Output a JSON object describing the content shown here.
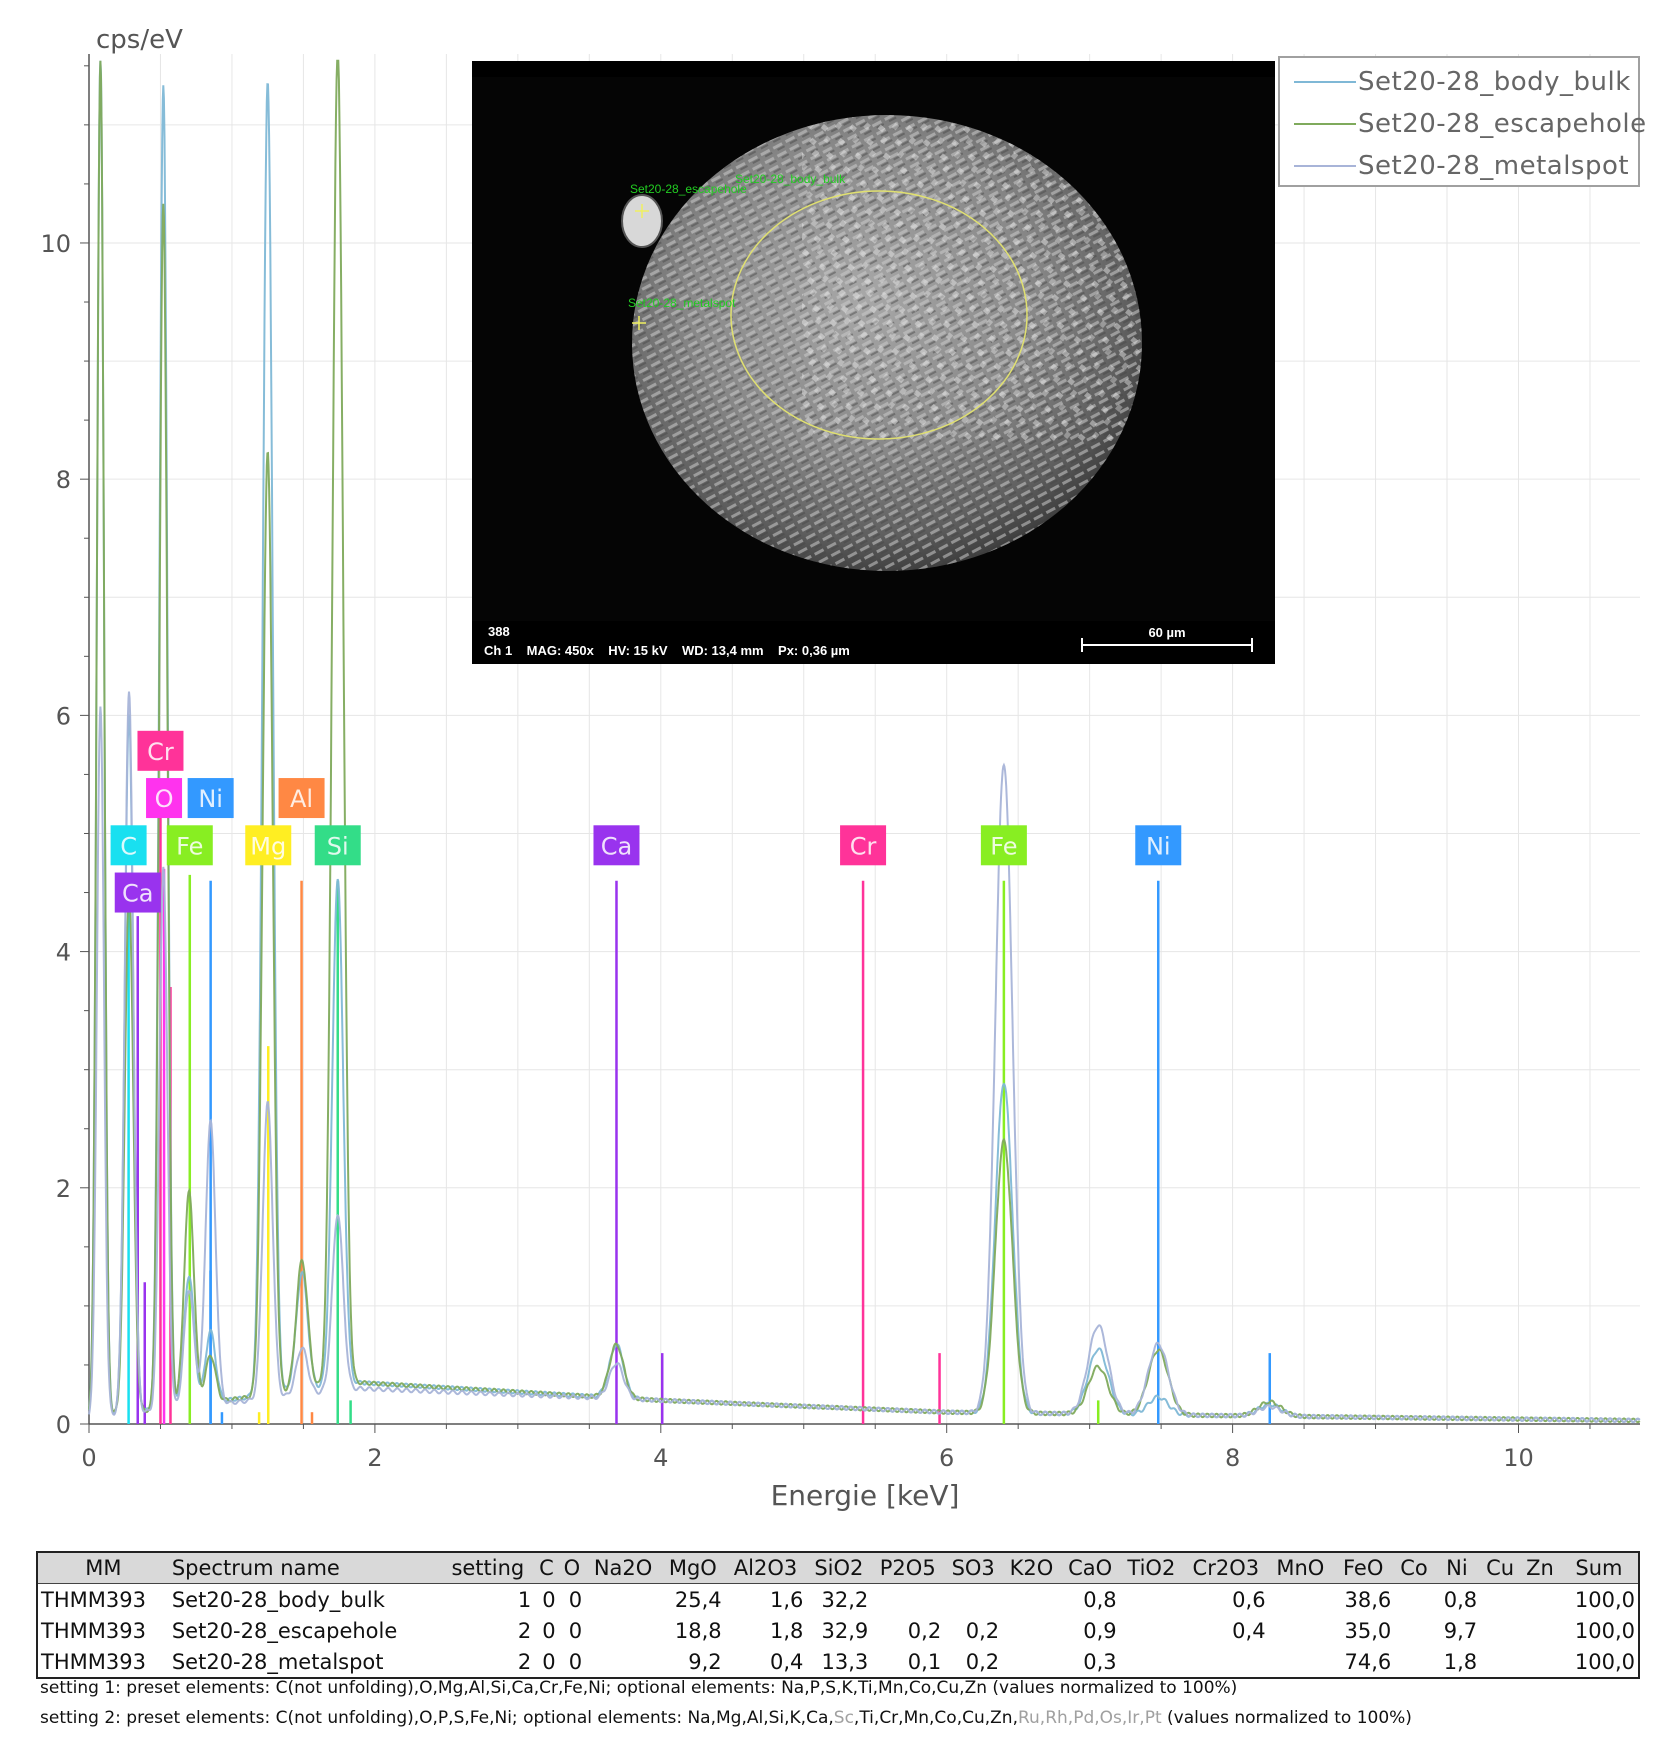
{
  "chart_data": {
    "type": "line",
    "y_unit_label": "cps/eV",
    "xlabel": "Energie [keV]",
    "xlim": [
      0,
      10.85
    ],
    "ylim": [
      0,
      11.6
    ],
    "x_ticks": [
      0,
      2,
      4,
      6,
      8,
      10
    ],
    "y_ticks": [
      0,
      2,
      4,
      6,
      8,
      10
    ],
    "grid": true,
    "legend_position": "top-right",
    "series": [
      {
        "name": "Set20-28_body_bulk",
        "color": "#7fb8d6",
        "peaks": [
          {
            "x": 0.08,
            "y": 11.5
          },
          {
            "x": 0.28,
            "y": 5.9
          },
          {
            "x": 0.52,
            "y": 11.2
          },
          {
            "x": 0.7,
            "y": 1.1
          },
          {
            "x": 0.85,
            "y": 0.6
          },
          {
            "x": 1.25,
            "y": 11.1
          },
          {
            "x": 1.49,
            "y": 1.0
          },
          {
            "x": 1.74,
            "y": 4.3
          },
          {
            "x": 3.69,
            "y": 0.45
          },
          {
            "x": 6.4,
            "y": 2.8
          },
          {
            "x": 7.06,
            "y": 0.55
          },
          {
            "x": 7.48,
            "y": 0.15
          },
          {
            "x": 8.26,
            "y": 0.1
          }
        ],
        "baseline": [
          [
            0.0,
            0.05
          ],
          [
            1.9,
            0.35
          ],
          [
            4.0,
            0.2
          ],
          [
            6.0,
            0.1
          ],
          [
            8.0,
            0.07
          ],
          [
            10.85,
            0.03
          ]
        ]
      },
      {
        "name": "Set20-28_escapehole",
        "color": "#7faa5c",
        "peaks": [
          {
            "x": 0.08,
            "y": 11.5
          },
          {
            "x": 0.28,
            "y": 4.4
          },
          {
            "x": 0.52,
            "y": 10.2
          },
          {
            "x": 0.7,
            "y": 1.8
          },
          {
            "x": 0.85,
            "y": 0.4
          },
          {
            "x": 1.25,
            "y": 8.0
          },
          {
            "x": 1.49,
            "y": 1.1
          },
          {
            "x": 1.74,
            "y": 11.3
          },
          {
            "x": 3.69,
            "y": 0.45
          },
          {
            "x": 6.4,
            "y": 2.3
          },
          {
            "x": 7.06,
            "y": 0.4
          },
          {
            "x": 7.48,
            "y": 0.55
          },
          {
            "x": 8.26,
            "y": 0.12
          }
        ],
        "baseline": [
          [
            0.0,
            0.05
          ],
          [
            1.9,
            0.35
          ],
          [
            4.0,
            0.2
          ],
          [
            6.0,
            0.1
          ],
          [
            8.0,
            0.07
          ],
          [
            10.85,
            0.03
          ]
        ]
      },
      {
        "name": "Set20-28_metalspot",
        "color": "#a8b4d8",
        "peaks": [
          {
            "x": 0.08,
            "y": 6.0
          },
          {
            "x": 0.28,
            "y": 6.1
          },
          {
            "x": 0.52,
            "y": 4.6
          },
          {
            "x": 0.7,
            "y": 1.0
          },
          {
            "x": 0.85,
            "y": 2.4
          },
          {
            "x": 1.25,
            "y": 2.5
          },
          {
            "x": 1.49,
            "y": 0.4
          },
          {
            "x": 1.74,
            "y": 1.5
          },
          {
            "x": 3.69,
            "y": 0.3
          },
          {
            "x": 6.4,
            "y": 5.5
          },
          {
            "x": 7.06,
            "y": 0.75
          },
          {
            "x": 7.48,
            "y": 0.6
          },
          {
            "x": 8.26,
            "y": 0.08
          }
        ],
        "baseline": [
          [
            0.0,
            0.05
          ],
          [
            1.9,
            0.3
          ],
          [
            4.0,
            0.2
          ],
          [
            6.0,
            0.1
          ],
          [
            8.0,
            0.07
          ],
          [
            10.85,
            0.03
          ]
        ]
      }
    ],
    "element_markers": [
      {
        "label": "C",
        "x": 0.277,
        "color": "#19e0f0",
        "label_y": 4.9,
        "line_top": 4.5
      },
      {
        "label": "Ca",
        "x": 0.341,
        "color": "#9933ee",
        "label_y": 4.5,
        "line_top": 4.3
      },
      {
        "label": "Cr",
        "x": 0.5,
        "color": "#ff3399",
        "label_y": 5.7,
        "line_top": 5.4
      },
      {
        "label": "O",
        "x": 0.525,
        "color": "#ff33ee",
        "label_y": 5.3,
        "line_top": 4.7
      },
      {
        "label": "Ni",
        "x": 0.851,
        "color": "#3399ff",
        "label_y": 5.3,
        "line_top": 4.6
      },
      {
        "label": "Fe",
        "x": 0.705,
        "color": "#88ee22",
        "label_y": 4.9,
        "line_top": 4.65
      },
      {
        "label": "Mg",
        "x": 1.254,
        "color": "#ffee22",
        "label_y": 4.9,
        "line_top": 3.2
      },
      {
        "label": "Al",
        "x": 1.487,
        "color": "#ff8844",
        "label_y": 5.3,
        "line_top": 4.6
      },
      {
        "label": "Si",
        "x": 1.74,
        "color": "#33dd88",
        "label_y": 4.9,
        "line_top": 4.6
      },
      {
        "label": "Ca",
        "x": 3.69,
        "color": "#9933ee",
        "label_y": 4.9,
        "line_top": 4.6
      },
      {
        "label": "Cr",
        "x": 5.415,
        "color": "#ff3399",
        "label_y": 4.9,
        "line_top": 4.6
      },
      {
        "label": "Fe",
        "x": 6.4,
        "color": "#88ee22",
        "label_y": 4.9,
        "line_top": 4.6
      },
      {
        "label": "Ni",
        "x": 7.48,
        "color": "#3399ff",
        "label_y": 4.9,
        "line_top": 4.6
      }
    ],
    "minor_lines": [
      {
        "x": 0.39,
        "color": "#9933ee",
        "top": 1.2
      },
      {
        "x": 0.57,
        "color": "#ff3399",
        "top": 3.7
      },
      {
        "x": 0.85,
        "color": "#3399ff",
        "top": 1.3
      },
      {
        "x": 0.93,
        "color": "#3399ff",
        "top": 0.1
      },
      {
        "x": 1.19,
        "color": "#ffee22",
        "top": 0.1
      },
      {
        "x": 1.56,
        "color": "#ff8844",
        "top": 0.1
      },
      {
        "x": 1.83,
        "color": "#33dd88",
        "top": 0.2
      },
      {
        "x": 4.01,
        "color": "#9933ee",
        "top": 0.6
      },
      {
        "x": 5.95,
        "color": "#ff3399",
        "top": 0.6
      },
      {
        "x": 7.06,
        "color": "#88ee22",
        "top": 0.2
      },
      {
        "x": 8.26,
        "color": "#3399ff",
        "top": 0.6
      }
    ]
  },
  "sem_image": {
    "frame_number": "388",
    "info_line": "Ch 1    MAG: 450x    HV: 15 kV    WD: 13,4 mm    Px: 0,36 µm",
    "scale_bar_label": "60 µm",
    "annotation_labels": [
      "Set20-28_body_bulk",
      "Set20-28_escapehole",
      "Set20-28_metalspot"
    ]
  },
  "table": {
    "headers": [
      "MM",
      "Spectrum name",
      "setting",
      "C",
      "O",
      "Na2O",
      "MgO",
      "Al2O3",
      "SiO2",
      "P2O5",
      "SO3",
      "K2O",
      "CaO",
      "TiO2",
      "Cr2O3",
      "MnO",
      "FeO",
      "Co",
      "Ni",
      "Cu",
      "Zn",
      "Sum"
    ],
    "rows": [
      [
        "THMM393",
        "Set20-28_body_bulk",
        "1",
        "0",
        "0",
        "",
        "25,4",
        "1,6",
        "32,2",
        "",
        "",
        "",
        "0,8",
        "",
        "0,6",
        "",
        "38,6",
        "",
        "0,8",
        "",
        "",
        "100,0"
      ],
      [
        "THMM393",
        "Set20-28_escapehole",
        "2",
        "0",
        "0",
        "",
        "18,8",
        "1,8",
        "32,9",
        "0,2",
        "0,2",
        "",
        "0,9",
        "",
        "0,4",
        "",
        "35,0",
        "",
        "9,7",
        "",
        "",
        "100,0"
      ],
      [
        "THMM393",
        "Set20-28_metalspot",
        "2",
        "0",
        "0",
        "",
        "9,2",
        "0,4",
        "13,3",
        "0,1",
        "0,2",
        "",
        "0,3",
        "",
        "",
        "",
        "74,6",
        "",
        "1,8",
        "",
        "",
        "100,0"
      ]
    ]
  },
  "notes": {
    "setting1": "setting 1: preset elements: C(not unfolding),O,Mg,Al,Si,Ca,Cr,Fe,Ni; optional elements: Na,P,S,K,Ti,Mn,Co,Cu,Zn (values normalized to 100%)",
    "setting2_a": "setting 2: preset elements: C(not unfolding),O,P,S,Fe,Ni; optional elements: Na,Mg,Al,Si,K,Ca,",
    "setting2_sc": "Sc",
    "setting2_b": ",Ti,Cr,Mn,Co,Cu,Zn,",
    "setting2_gray": "Ru,Rh,Pd,Os,Ir,Pt",
    "setting2_c": " (values normalized to 100%)"
  }
}
